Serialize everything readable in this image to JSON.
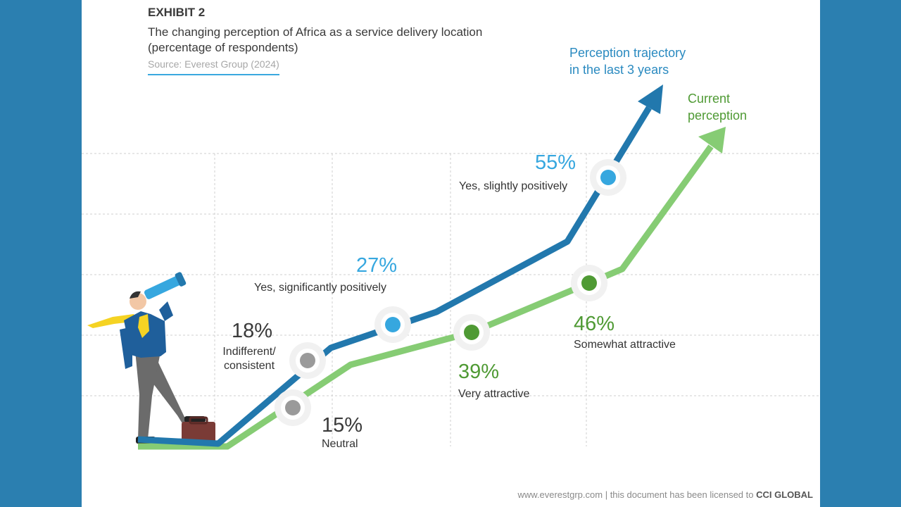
{
  "header": {
    "exhibit": "EXHIBIT 2",
    "subtitle_line1": "The changing perception of Africa as a service delivery location",
    "subtitle_line2": "(percentage of respondents)",
    "source": "Source: Everest Group (2024)"
  },
  "footer": {
    "site": "www.everestgrp.com | this document has been licensed to ",
    "licensee": "CCI GLOBAL"
  },
  "colors": {
    "frame": "#2b7fb0",
    "trajectory_line": "#2278ad",
    "trajectory_marker": "#36a7df",
    "current_line": "#86cc74",
    "current_marker": "#4f9a34",
    "neutral_marker": "#9a9a9a"
  },
  "chart_data": {
    "type": "line",
    "title": "",
    "series": [
      {
        "name": "Perception trajectory in the last 3 years",
        "points": [
          {
            "value": "18%",
            "label": "Indifferent/ consistent"
          },
          {
            "value": "27%",
            "label": "Yes, significantly positively"
          },
          {
            "value": "55%",
            "label": "Yes, slightly positively"
          }
        ]
      },
      {
        "name": "Current perception",
        "points": [
          {
            "value": "15%",
            "label": "Neutral"
          },
          {
            "value": "39%",
            "label": "Very attractive"
          },
          {
            "value": "46%",
            "label": "Somewhat attractive"
          }
        ]
      }
    ],
    "legend": [
      {
        "line1": "Perception trajectory",
        "line2": "in the last 3 years"
      },
      {
        "line1": "Current",
        "line2": "perception"
      }
    ],
    "grid": true
  }
}
